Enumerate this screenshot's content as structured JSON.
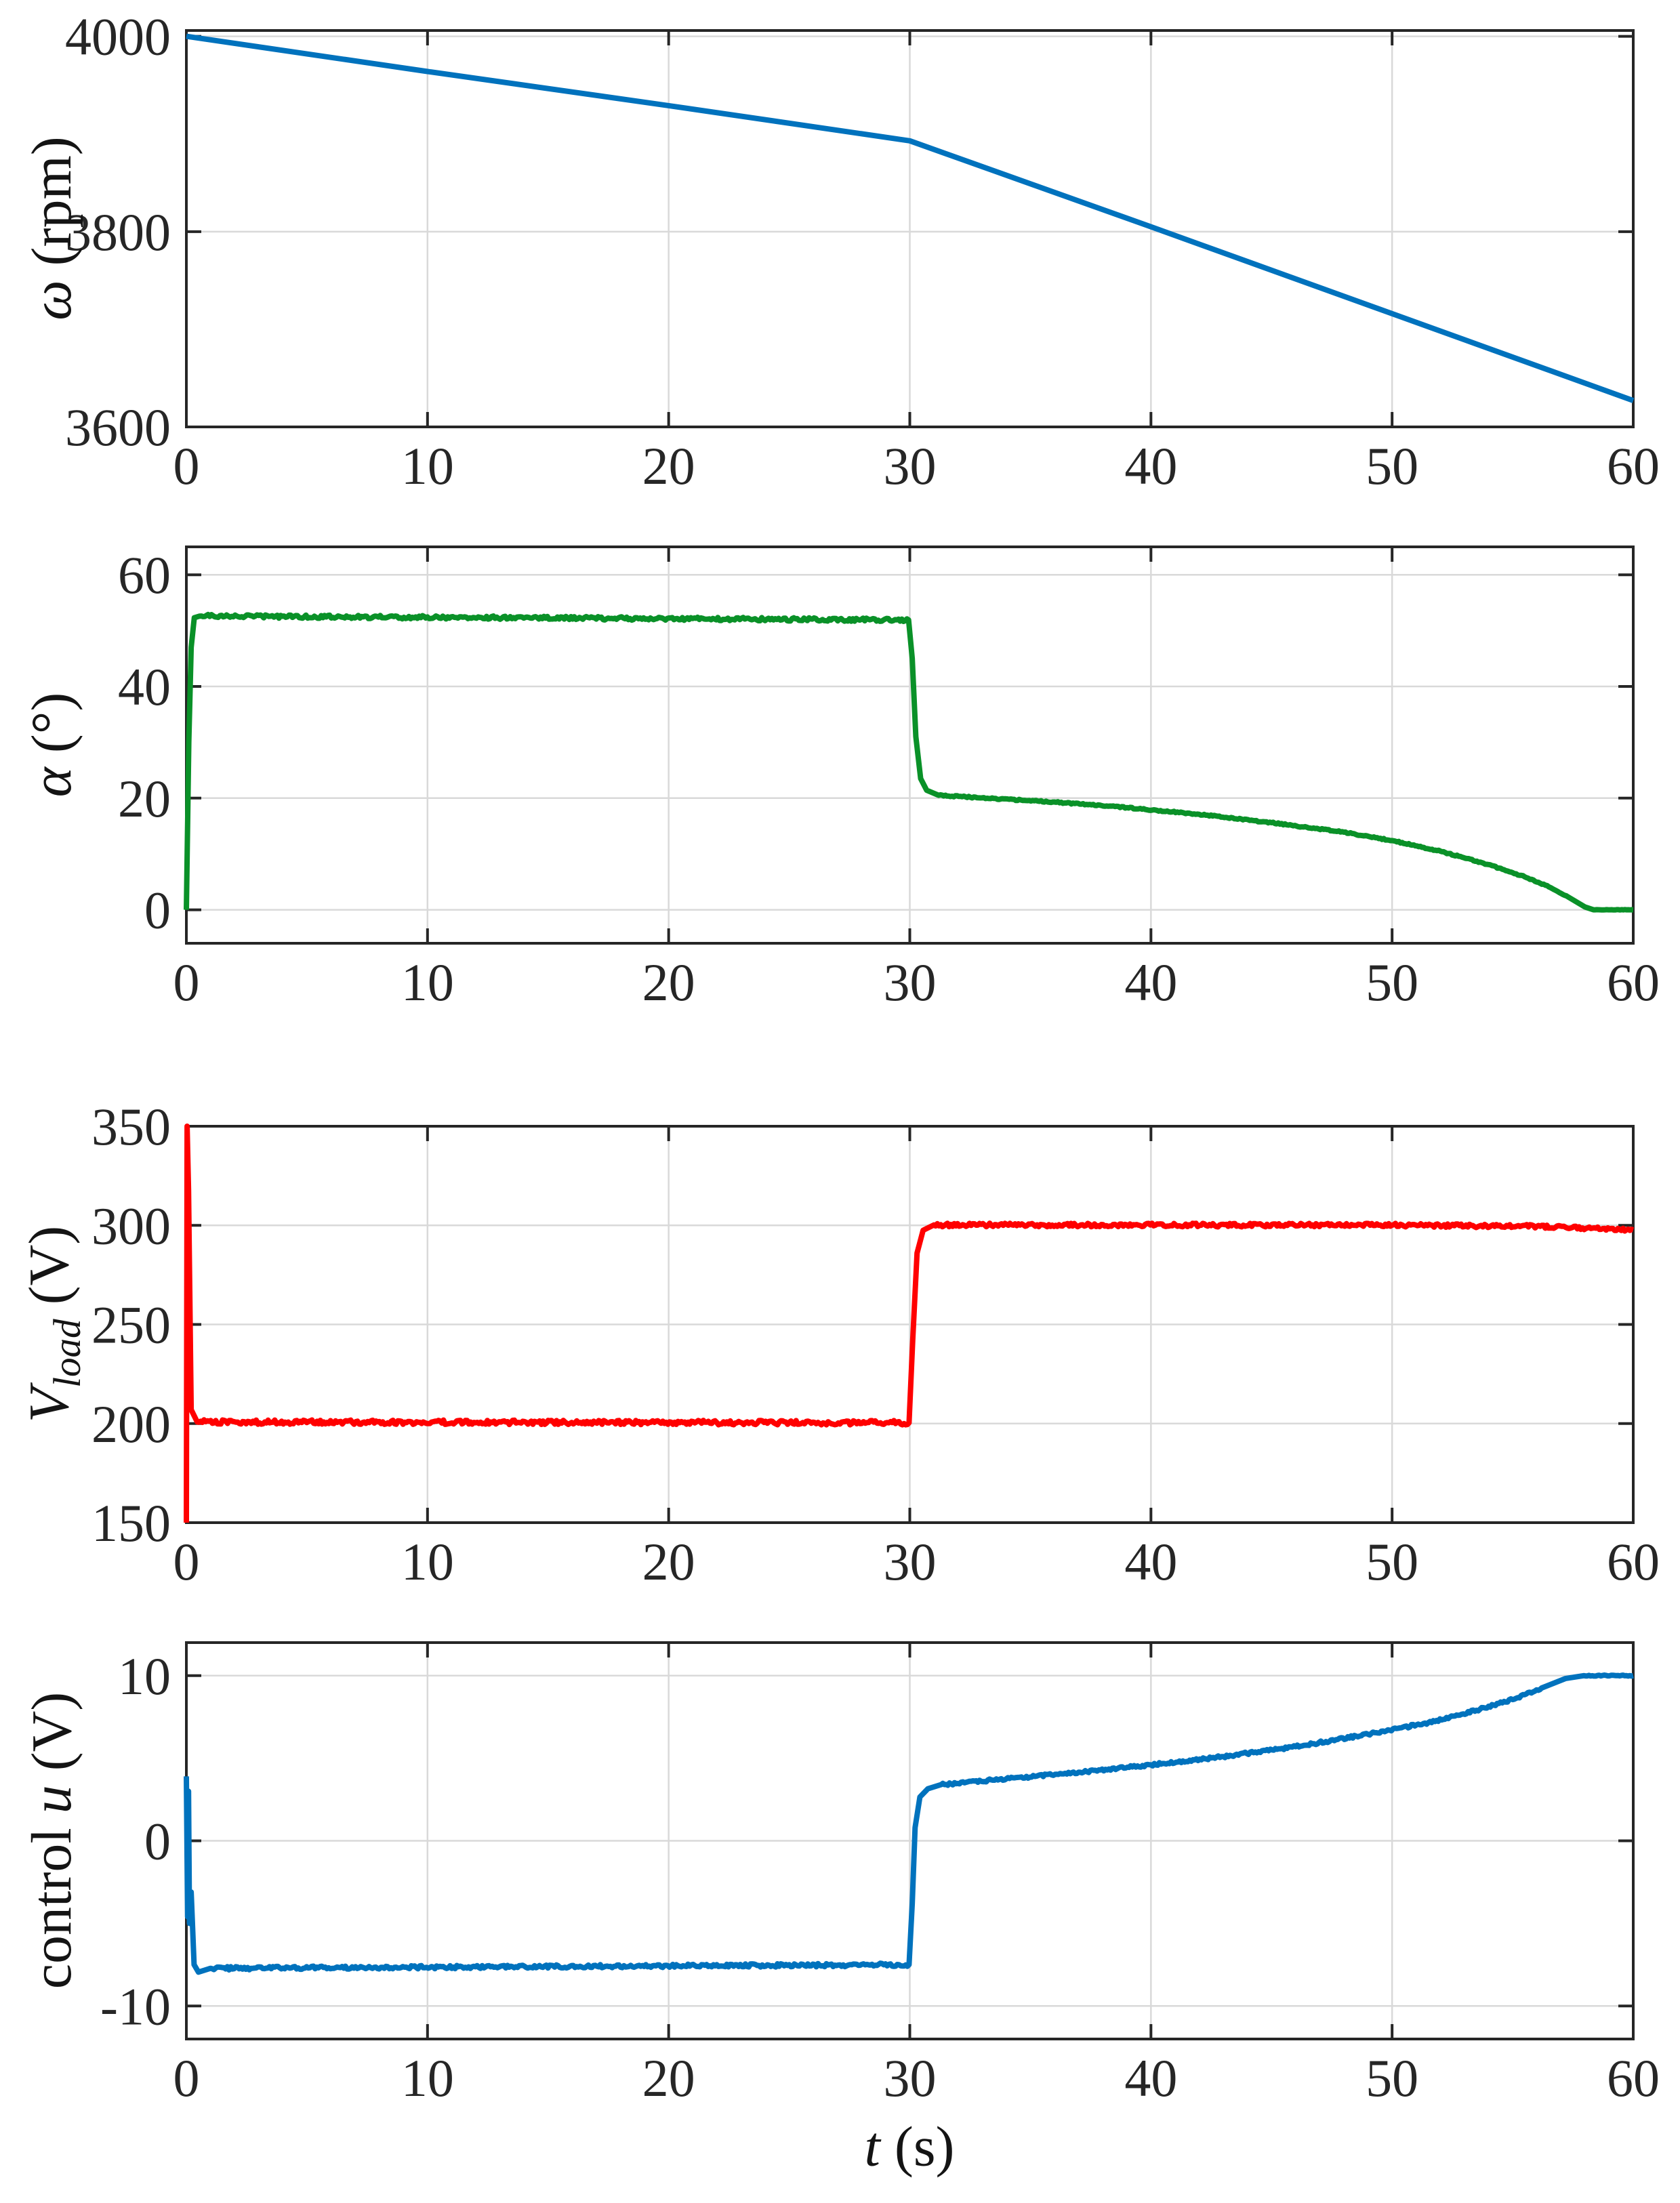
{
  "style": {
    "background": "#ffffff",
    "axis_color": "#262626",
    "grid_color": "#d9d9d9",
    "tick_label_color": "#262626"
  },
  "xtitle": {
    "main": "t",
    "unit": " (s)"
  },
  "chart_data": [
    {
      "id": "omega",
      "type": "line",
      "title": "",
      "ylabel": {
        "pre": "",
        "main": "ω",
        "sub": "",
        "unit": " (rpm)"
      },
      "line_color": "#0072BD",
      "line_width": 8,
      "grid": true,
      "xlim": [
        0,
        60
      ],
      "xticks": [
        0,
        10,
        20,
        30,
        40,
        50,
        60
      ],
      "ylim": [
        3600,
        4006
      ],
      "yticks": [
        4000,
        3800,
        3600
      ],
      "series": [
        {
          "name": "omega-rpm",
          "anchors": [
            [
              0,
              4000,
              0
            ],
            [
              10,
              3964,
              0
            ],
            [
              20,
              3929,
              0
            ],
            [
              30,
              3893,
              0
            ],
            [
              40,
              3805,
              0
            ],
            [
              50,
              3716,
              0
            ],
            [
              60,
              3627,
              0
            ]
          ]
        }
      ]
    },
    {
      "id": "alpha",
      "type": "line",
      "title": "",
      "ylabel": {
        "pre": "",
        "main": "α",
        "sub": "",
        "unit": " (°)"
      },
      "line_color": "#0a9128",
      "line_width": 8,
      "grid": true,
      "xlim": [
        0,
        60
      ],
      "xticks": [
        0,
        10,
        20,
        30,
        40,
        50,
        60
      ],
      "ylim": [
        -6,
        65
      ],
      "yticks": [
        60,
        40,
        20,
        0
      ],
      "series": [
        {
          "name": "alpha-deg",
          "anchors": [
            [
              0,
              0,
              0
            ],
            [
              0.1,
              30,
              0
            ],
            [
              0.2,
              47,
              0
            ],
            [
              0.33,
              52.3,
              0
            ],
            [
              0.55,
              52.6,
              0.3
            ],
            [
              29.95,
              51.9,
              0
            ],
            [
              30.1,
              45,
              0
            ],
            [
              30.25,
              31,
              0
            ],
            [
              30.45,
              23.5,
              0
            ],
            [
              30.7,
              21.4,
              0
            ],
            [
              31.2,
              20.5,
              0.12
            ],
            [
              33,
              20.05,
              0.12
            ],
            [
              36,
              19.3,
              0.12
            ],
            [
              39,
              18.3,
              0.12
            ],
            [
              42,
              17.1,
              0.12
            ],
            [
              45,
              15.6,
              0.12
            ],
            [
              48,
              13.9,
              0.12
            ],
            [
              50,
              12.4,
              0.12
            ],
            [
              52,
              10.5,
              0.12
            ],
            [
              54,
              8.1,
              0.12
            ],
            [
              55.5,
              5.9,
              0.1
            ],
            [
              56.5,
              4.1,
              0.1
            ],
            [
              57.3,
              2.3,
              0
            ],
            [
              58,
              0.5,
              0
            ],
            [
              58.35,
              0,
              0.03
            ],
            [
              60,
              0,
              0
            ]
          ]
        }
      ]
    },
    {
      "id": "vload",
      "type": "line",
      "title": "",
      "ylabel": {
        "pre": "",
        "main": "V",
        "sub": "load",
        "unit": " (V)"
      },
      "line_color": "#ff0000",
      "line_width": 8,
      "grid": true,
      "xlim": [
        0,
        60
      ],
      "xticks": [
        0,
        10,
        20,
        30,
        40,
        50,
        60
      ],
      "ylim": [
        150,
        350
      ],
      "yticks": [
        350,
        300,
        250,
        200,
        150
      ],
      "series": [
        {
          "name": "v-load",
          "anchors": [
            [
              0,
              150,
              0
            ],
            [
              0.03,
              350,
              0
            ],
            [
              0.09,
              318,
              0
            ],
            [
              0.2,
              207,
              0
            ],
            [
              0.45,
              200.8,
              1.1
            ],
            [
              29.97,
              200.4,
              0
            ],
            [
              30.12,
              242,
              0
            ],
            [
              30.3,
              286,
              0
            ],
            [
              30.55,
              297.5,
              0
            ],
            [
              31,
              300.2,
              0.9
            ],
            [
              50,
              300.1,
              0.9
            ],
            [
              56,
              299.5,
              0.8
            ],
            [
              60,
              297.7,
              0
            ]
          ]
        }
      ]
    },
    {
      "id": "control",
      "type": "line",
      "title": "",
      "ylabel": {
        "pre": "control ",
        "main": "u",
        "sub": "",
        "unit": " (V)"
      },
      "line_color": "#0072BD",
      "line_width": 8,
      "grid": true,
      "xlim": [
        0,
        60
      ],
      "xticks": [
        0,
        10,
        20,
        30,
        40,
        50,
        60
      ],
      "ylim": [
        -12,
        12
      ],
      "yticks": [
        10,
        0,
        -10
      ],
      "series": [
        {
          "name": "control-u",
          "anchors": [
            [
              0,
              3.9,
              0
            ],
            [
              0.05,
              -4.6,
              0
            ],
            [
              0.09,
              3.0,
              0
            ],
            [
              0.13,
              -5.0,
              0
            ],
            [
              0.2,
              -3.1,
              0
            ],
            [
              0.32,
              -7.5,
              0
            ],
            [
              0.5,
              -7.95,
              0
            ],
            [
              1.0,
              -7.72,
              0.1
            ],
            [
              29.97,
              -7.5,
              0
            ],
            [
              30.1,
              -3.8,
              0
            ],
            [
              30.22,
              0.8,
              0
            ],
            [
              30.42,
              2.65,
              0
            ],
            [
              30.75,
              3.15,
              0
            ],
            [
              31.3,
              3.4,
              0.08
            ],
            [
              34,
              3.75,
              0.08
            ],
            [
              37,
              4.15,
              0.08
            ],
            [
              40,
              4.6,
              0.08
            ],
            [
              43,
              5.1,
              0.08
            ],
            [
              46,
              5.7,
              0.08
            ],
            [
              49,
              6.45,
              0.08
            ],
            [
              51.5,
              7.15,
              0.08
            ],
            [
              53.5,
              7.9,
              0.08
            ],
            [
              55,
              8.55,
              0.06
            ],
            [
              56.2,
              9.25,
              0
            ],
            [
              57.2,
              9.83,
              0
            ],
            [
              57.95,
              10,
              0.03
            ],
            [
              60,
              10,
              0
            ]
          ]
        }
      ]
    }
  ]
}
